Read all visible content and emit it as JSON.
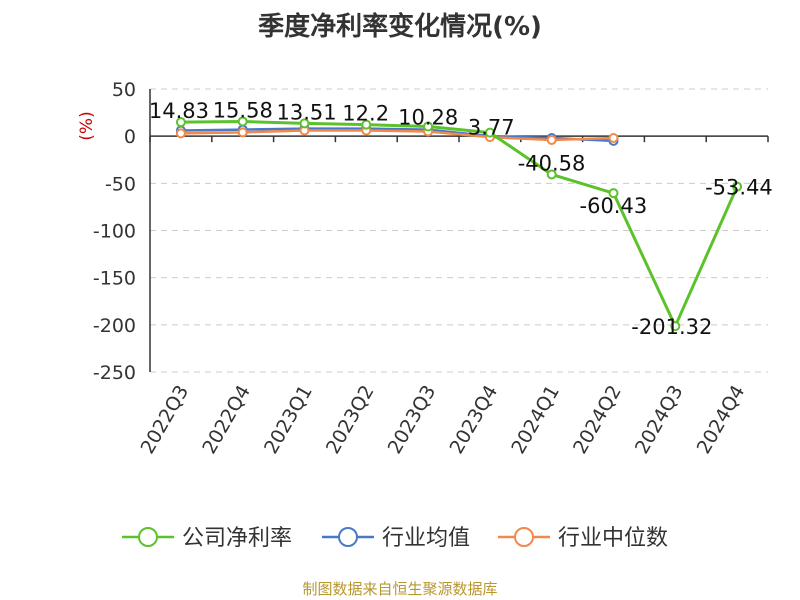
{
  "header": {
    "title": "季度净利率变化情况(%)"
  },
  "footer": {
    "source": "制图数据来自恒生聚源数据库"
  },
  "chart_data": {
    "type": "line",
    "title": "季度净利率变化情况(%)",
    "ylabel": "(%)",
    "xlabel": "",
    "categories": [
      "2022Q3",
      "2022Q4",
      "2023Q1",
      "2023Q2",
      "2023Q3",
      "2023Q4",
      "2024Q1",
      "2024Q2",
      "2024Q3",
      "2024Q4"
    ],
    "ylim": [
      -250,
      50
    ],
    "yticks": [
      50,
      0,
      -50,
      -100,
      -150,
      -200,
      -250
    ],
    "ytick_labels": [
      "50",
      "0",
      "-50",
      "-100",
      "-150",
      "-200",
      "-250"
    ],
    "grid": "horizontal dashed",
    "legend_position": "bottom",
    "series": [
      {
        "name": "公司净利率",
        "color": "#5cc22b",
        "values": [
          14.83,
          15.58,
          13.51,
          12.2,
          10.28,
          3.77,
          -40.58,
          -60.43,
          -201.32,
          -53.44
        ],
        "labels": [
          "14.83",
          "15.58",
          "13.51",
          "12.2",
          "10.28",
          "3.77",
          "-40.58",
          "-60.43",
          "-201.32",
          "-53.44"
        ]
      },
      {
        "name": "行业均值",
        "color": "#4a78c9",
        "values": [
          6,
          7,
          8,
          8,
          7,
          0,
          -2,
          -5,
          null,
          null
        ]
      },
      {
        "name": "行业中位数",
        "color": "#f08a4b",
        "values": [
          3,
          4,
          6,
          6,
          5,
          -1,
          -4,
          -2,
          null,
          null
        ]
      }
    ]
  }
}
